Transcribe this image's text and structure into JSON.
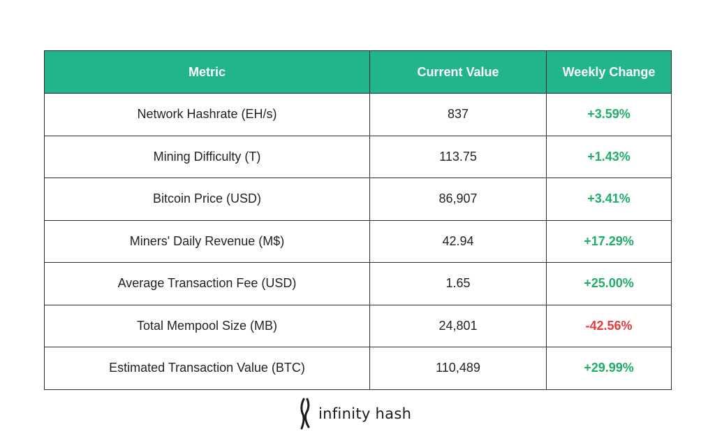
{
  "table": {
    "headers": [
      "Metric",
      "Current Value",
      "Weekly Change"
    ],
    "rows": [
      {
        "metric": "Network Hashrate (EH/s)",
        "value": "837",
        "change": "+3.59%",
        "direction": "up"
      },
      {
        "metric": "Mining Difficulty (T)",
        "value": "113.75",
        "change": "+1.43%",
        "direction": "up"
      },
      {
        "metric": "Bitcoin Price (USD)",
        "value": "86,907",
        "change": "+3.41%",
        "direction": "up"
      },
      {
        "metric": "Miners' Daily Revenue (M$)",
        "value": "42.94",
        "change": "+17.29%",
        "direction": "up"
      },
      {
        "metric": "Average Transaction Fee (USD)",
        "value": "1.65",
        "change": "+25.00%",
        "direction": "up"
      },
      {
        "metric": "Total Mempool Size (MB)",
        "value": "24,801",
        "change": "-42.56%",
        "direction": "down"
      },
      {
        "metric": "Estimated Transaction Value (BTC)",
        "value": "110,489",
        "change": "+29.99%",
        "direction": "up"
      }
    ]
  },
  "colors": {
    "header_bg": "#22b48c",
    "positive": "#1fae67",
    "negative": "#e83a3a"
  },
  "brand": {
    "name": "infinity hash",
    "icon": "infinity-hash-logo-icon"
  }
}
